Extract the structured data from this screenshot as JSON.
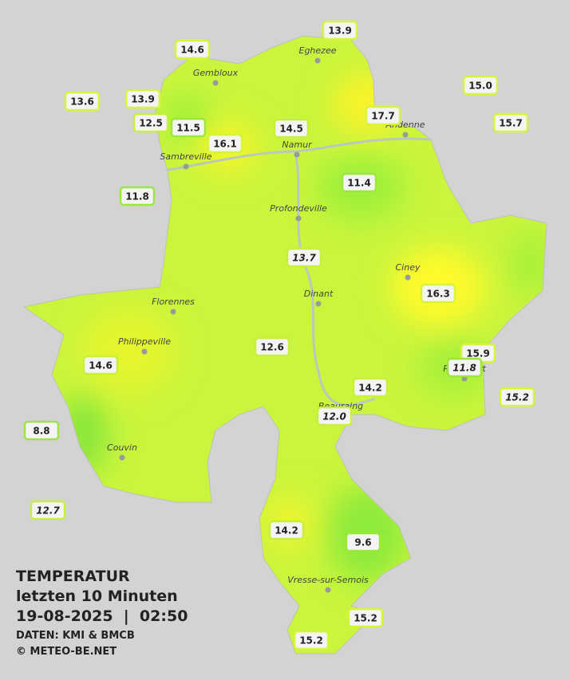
{
  "title": {
    "line1": "TEMPERATUR",
    "line2": "letzten 10 Minuten",
    "datetime": "19-08-2025  |  02:50",
    "source": "DATEN: KMI & BMCB",
    "copyright": "© METEO-BE.NET"
  },
  "cities": [
    "Eghezee",
    "Gembloux",
    "Andenne",
    "Namur",
    "Sambreville",
    "Profondeville",
    "Ciney",
    "Dinant",
    "Florennes",
    "Philippeville",
    "Rochefort",
    "Beauraing",
    "Couvin",
    "Vresse-sur-Semois"
  ],
  "stations": [
    "13.9",
    "14.6",
    "15.0",
    "13.6",
    "13.9",
    "12.5",
    "11.5",
    "14.5",
    "17.7",
    "15.7",
    "16.1",
    "11.8",
    "11.4",
    "13.7",
    "16.3",
    "12.6",
    "14.6",
    "15.9",
    "11.8",
    "14.2",
    "15.2",
    "12.0",
    "8.8",
    "12.7",
    "14.2",
    "9.6",
    "15.2",
    "15.2"
  ]
}
